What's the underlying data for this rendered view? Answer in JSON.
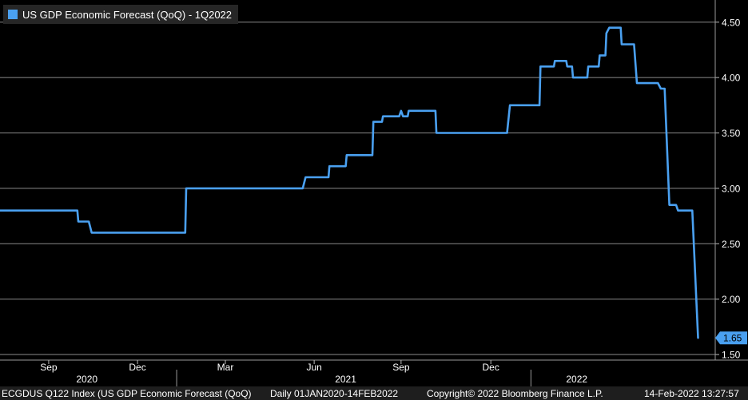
{
  "chart_data": {
    "type": "line",
    "series": [
      {
        "name": "US GDP Economic Forecast (QoQ) - 1Q2022",
        "color": "#4aa0f0",
        "points": [
          [
            "2020-07-01",
            2.8
          ],
          [
            "2020-09-20",
            2.8
          ],
          [
            "2020-09-21",
            2.7
          ],
          [
            "2020-10-02",
            2.7
          ],
          [
            "2020-10-05",
            2.6
          ],
          [
            "2021-01-11",
            2.6
          ],
          [
            "2021-01-12",
            3.0
          ],
          [
            "2021-05-14",
            3.0
          ],
          [
            "2021-05-17",
            3.1
          ],
          [
            "2021-06-10",
            3.1
          ],
          [
            "2021-06-11",
            3.2
          ],
          [
            "2021-06-28",
            3.2
          ],
          [
            "2021-06-29",
            3.3
          ],
          [
            "2021-07-26",
            3.3
          ],
          [
            "2021-07-27",
            3.6
          ],
          [
            "2021-08-05",
            3.6
          ],
          [
            "2021-08-06",
            3.65
          ],
          [
            "2021-08-23",
            3.65
          ],
          [
            "2021-08-25",
            3.7
          ],
          [
            "2021-08-27",
            3.65
          ],
          [
            "2021-09-01",
            3.65
          ],
          [
            "2021-09-02",
            3.7
          ],
          [
            "2021-09-30",
            3.7
          ],
          [
            "2021-10-01",
            3.5
          ],
          [
            "2021-12-14",
            3.5
          ],
          [
            "2021-12-17",
            3.75
          ],
          [
            "2022-01-17",
            3.75
          ],
          [
            "2022-01-18",
            4.1
          ],
          [
            "2022-02-01",
            4.1
          ],
          [
            "2022-02-02",
            4.15
          ],
          [
            "2022-02-14",
            4.15
          ],
          [
            "2022-02-15",
            4.1
          ],
          [
            "2022-02-20",
            4.1
          ],
          [
            "2022-02-21",
            4.0
          ],
          [
            "2022-03-08",
            4.0
          ],
          [
            "2022-03-09",
            4.1
          ],
          [
            "2022-03-20",
            4.1
          ],
          [
            "2022-03-21",
            4.2
          ],
          [
            "2022-03-27",
            4.2
          ],
          [
            "2022-03-28",
            4.4
          ],
          [
            "2022-03-31",
            4.45
          ],
          [
            "2022-04-12",
            4.45
          ],
          [
            "2022-04-13",
            4.3
          ],
          [
            "2022-04-26",
            4.3
          ],
          [
            "2022-04-29",
            3.95
          ],
          [
            "2022-05-21",
            3.95
          ],
          [
            "2022-05-24",
            3.9
          ],
          [
            "2022-05-28",
            3.9
          ],
          [
            "2022-06-02",
            2.85
          ],
          [
            "2022-06-09",
            2.85
          ],
          [
            "2022-06-11",
            2.8
          ],
          [
            "2022-06-26",
            2.8
          ],
          [
            "2022-07-02",
            1.65
          ]
        ]
      }
    ],
    "last_value_label": "1.65",
    "xlim": [
      "2020-07-01",
      "2022-07-20"
    ],
    "ylim": [
      1.45,
      4.7
    ],
    "yticks": [
      "1.50",
      "2.00",
      "2.50",
      "3.00",
      "3.50",
      "4.00",
      "4.50"
    ],
    "xticks": [
      {
        "label": "Sep",
        "date": "2020-08-21"
      },
      {
        "label": "Dec",
        "date": "2020-11-22"
      },
      {
        "label": "Mar",
        "date": "2021-02-22"
      },
      {
        "label": "Jun",
        "date": "2021-05-26"
      },
      {
        "label": "Sep",
        "date": "2021-08-25"
      },
      {
        "label": "Dec",
        "date": "2021-11-27"
      }
    ],
    "years": [
      {
        "label": "2020",
        "date": "2020-09-30"
      },
      {
        "label": "2021",
        "date": "2021-06-28"
      },
      {
        "label": "2022",
        "date": "2022-02-25"
      }
    ],
    "year_dividers": [
      "2021-01-02",
      "2022-01-08"
    ],
    "grid": true,
    "y_axis_position": "right",
    "legend_position": "top-left"
  },
  "legend": {
    "label": "US GDP Economic Forecast (QoQ) - 1Q2022",
    "color": "#4aa0f0"
  },
  "footer": {
    "index": "ECGDUS Q122 Index (US GDP Economic Forecast (QoQ)",
    "range": "Daily 01JAN2020-14FEB2022",
    "copyright": "Copyright© 2022 Bloomberg Finance L.P.",
    "timestamp": "14-Feb-2022 13:27:57"
  }
}
